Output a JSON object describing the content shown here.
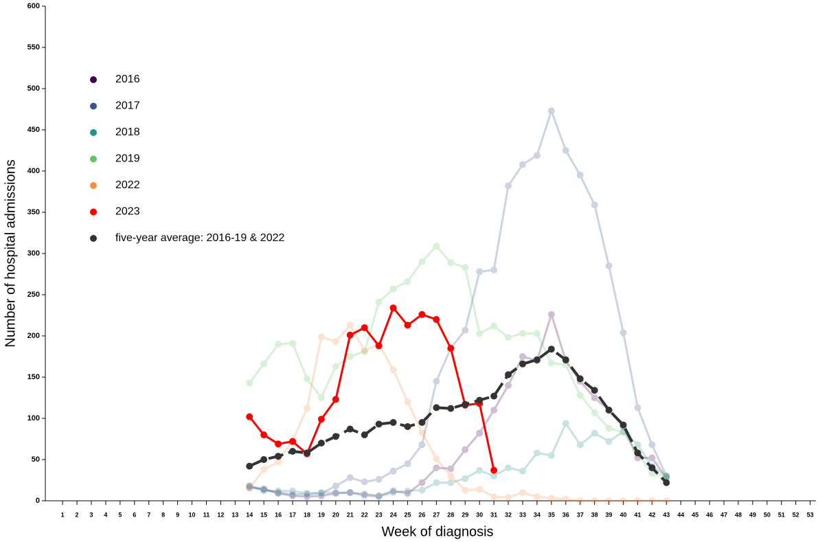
{
  "chart_data": {
    "type": "line",
    "x_label": "Week of diagnosis",
    "y_label": "Number of hospital admissions",
    "x": [
      14,
      15,
      16,
      17,
      18,
      19,
      20,
      21,
      22,
      23,
      24,
      25,
      26,
      27,
      28,
      29,
      30,
      31,
      32,
      33,
      34,
      35,
      36,
      37,
      38,
      39,
      40,
      41,
      42,
      43
    ],
    "xlim": [
      -0.2,
      53.4
    ],
    "xticks": [
      1,
      2,
      3,
      4,
      5,
      6,
      7,
      8,
      9,
      10,
      11,
      12,
      13,
      14,
      15,
      16,
      17,
      18,
      19,
      20,
      21,
      22,
      23,
      24,
      25,
      26,
      27,
      28,
      29,
      30,
      31,
      32,
      33,
      34,
      35,
      36,
      37,
      38,
      39,
      40,
      41,
      42,
      43,
      44,
      45,
      46,
      47,
      48,
      49,
      50,
      51,
      52,
      53
    ],
    "ylim": [
      0,
      600
    ],
    "yticks": [
      0,
      50,
      100,
      150,
      200,
      250,
      300,
      350,
      400,
      450,
      500,
      550,
      600
    ],
    "legend": "upper left",
    "series": [
      {
        "name": "2016",
        "color": "#440154",
        "opacity": 0.25,
        "dashed": false,
        "values": [
          16,
          14,
          9,
          6,
          5,
          6,
          9,
          10,
          8,
          6,
          12,
          9,
          22,
          40,
          39,
          62,
          82,
          110,
          140,
          175,
          170,
          226,
          170,
          145,
          125,
          110,
          90,
          52,
          52,
          28
        ]
      },
      {
        "name": "2017",
        "color": "#3b528b",
        "opacity": 0.25,
        "dashed": false,
        "values": [
          18,
          14,
          10,
          8,
          8,
          9,
          18,
          28,
          23,
          26,
          36,
          45,
          68,
          145,
          185,
          207,
          278,
          280,
          382,
          408,
          419,
          473,
          425,
          395,
          359,
          285,
          204,
          113,
          68,
          30
        ]
      },
      {
        "name": "2018",
        "color": "#21918c",
        "opacity": 0.25,
        "dashed": false,
        "values": [
          18,
          12,
          12,
          12,
          9,
          10,
          10,
          10,
          6,
          5,
          10,
          12,
          13,
          22,
          22,
          27,
          37,
          30,
          40,
          36,
          58,
          55,
          94,
          68,
          82,
          72,
          84,
          68,
          42,
          30
        ]
      },
      {
        "name": "2019",
        "color": "#5ec962",
        "opacity": 0.25,
        "dashed": false,
        "values": [
          143,
          166,
          190,
          191,
          148,
          125,
          163,
          175,
          181,
          241,
          257,
          266,
          290,
          309,
          289,
          283,
          203,
          212,
          198,
          203,
          203,
          167,
          165,
          128,
          107,
          88,
          83,
          58,
          33,
          30
        ]
      },
      {
        "name": "2022",
        "color": "#f98e3c",
        "opacity": 0.25,
        "dashed": false,
        "values": [
          15,
          38,
          47,
          73,
          112,
          199,
          193,
          213,
          182,
          190,
          159,
          120,
          83,
          51,
          30,
          13,
          14,
          5,
          4,
          10,
          5,
          3,
          2,
          0,
          0,
          0,
          0,
          0,
          0,
          0
        ]
      },
      {
        "name": "2023",
        "color": "#ff0000",
        "opacity": 1,
        "dashed": false,
        "values": [
          102,
          80,
          69,
          72,
          57,
          99,
          123,
          201,
          210,
          188,
          234,
          213,
          226,
          220,
          185,
          116,
          118,
          37,
          null,
          null,
          null,
          null,
          null,
          null,
          null,
          null,
          null,
          null,
          null,
          null
        ]
      },
      {
        "name": "five-year average: 2016-19 & 2022",
        "color": "#333333",
        "opacity": 1,
        "dashed": true,
        "values": [
          42,
          50,
          54,
          60,
          58,
          70,
          78,
          87,
          80,
          93,
          95,
          90,
          95,
          113,
          112,
          117,
          122,
          127,
          153,
          166,
          171,
          184,
          171,
          148,
          134,
          110,
          92,
          58,
          40,
          22
        ]
      }
    ]
  }
}
